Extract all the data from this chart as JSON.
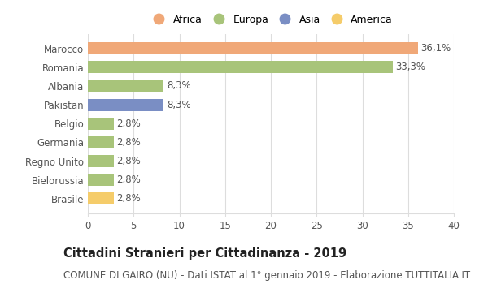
{
  "categories": [
    "Brasile",
    "Bielorussia",
    "Regno Unito",
    "Germania",
    "Belgio",
    "Pakistan",
    "Albania",
    "Romania",
    "Marocco"
  ],
  "values": [
    2.8,
    2.8,
    2.8,
    2.8,
    2.8,
    8.3,
    8.3,
    33.3,
    36.1
  ],
  "labels": [
    "2,8%",
    "2,8%",
    "2,8%",
    "2,8%",
    "2,8%",
    "8,3%",
    "8,3%",
    "33,3%",
    "36,1%"
  ],
  "bar_colors": [
    "#f5cc6a",
    "#a8c47a",
    "#a8c47a",
    "#a8c47a",
    "#a8c47a",
    "#7a8ec4",
    "#a8c47a",
    "#a8c47a",
    "#f0a878"
  ],
  "legend_labels": [
    "Africa",
    "Europa",
    "Asia",
    "America"
  ],
  "legend_colors": [
    "#f0a878",
    "#a8c47a",
    "#7a8ec4",
    "#f5cc6a"
  ],
  "title": "Cittadini Stranieri per Cittadinanza - 2019",
  "subtitle": "COMUNE DI GAIRO (NU) - Dati ISTAT al 1° gennaio 2019 - Elaborazione TUTTITALIA.IT",
  "xlim": [
    0,
    40
  ],
  "xticks": [
    0,
    5,
    10,
    15,
    20,
    25,
    30,
    35,
    40
  ],
  "background_color": "#ffffff",
  "grid_color": "#dddddd",
  "bar_height": 0.65,
  "label_fontsize": 8.5,
  "title_fontsize": 10.5,
  "subtitle_fontsize": 8.5,
  "tick_fontsize": 8.5,
  "legend_fontsize": 9
}
